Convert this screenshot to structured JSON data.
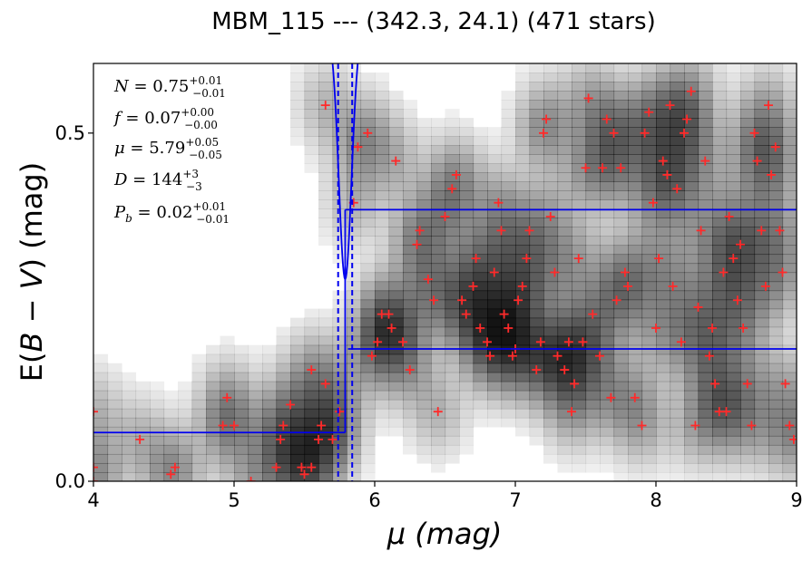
{
  "chart_data": {
    "type": "scatter",
    "title": "MBM_115 --- (342.3, 24.1) (471 stars)",
    "xlabel": "μ (mag)",
    "ylabel_parts": [
      "E(",
      "B",
      " − ",
      "V",
      ") (mag)"
    ],
    "xlim": [
      4,
      9
    ],
    "ylim": [
      0.0,
      0.6
    ],
    "x_ticks": [
      4,
      5,
      6,
      7,
      8,
      9
    ],
    "x_tick_labels": [
      "4",
      "5",
      "6",
      "7",
      "8",
      "9"
    ],
    "y_ticks": [
      0.0,
      0.5
    ],
    "y_tick_labels": [
      "0.0",
      "0.5"
    ],
    "grid": false,
    "annotations": [
      {
        "symbol": "N",
        "value": "0.75",
        "sup": "+0.01",
        "sub": "−0.01"
      },
      {
        "symbol": "f",
        "value": "0.07",
        "sup": "+0.00",
        "sub": "−0.00"
      },
      {
        "symbol": "μ",
        "value": "5.79",
        "sup": "+0.05",
        "sub": "−0.05"
      },
      {
        "symbol": "D",
        "value": "144",
        "sup": "+3",
        "sub": "−3"
      },
      {
        "symbol": "P",
        "symbol_sub": "b",
        "value": "0.02",
        "sup": "+0.01",
        "sub": "−0.01"
      }
    ],
    "colors": {
      "stars": "#ff2a2a",
      "model": "#0000ee",
      "density": "#000000"
    },
    "step_model": {
      "mu": 5.79,
      "foreground_ebv": 0.07,
      "background_band_low": 0.19,
      "background_band_high": 0.39
    },
    "mu_bounds": [
      5.74,
      5.84
    ],
    "stars": [
      [
        4.0,
        0.0
      ],
      [
        4.0,
        0.02
      ],
      [
        4.0,
        0.1
      ],
      [
        4.55,
        0.01
      ],
      [
        4.58,
        0.02
      ],
      [
        4.33,
        0.06
      ],
      [
        4.92,
        0.08
      ],
      [
        4.95,
        0.12
      ],
      [
        5.0,
        0.08
      ],
      [
        5.12,
        0.0
      ],
      [
        5.3,
        0.02
      ],
      [
        5.33,
        0.06
      ],
      [
        5.35,
        0.08
      ],
      [
        5.4,
        0.11
      ],
      [
        5.48,
        0.02
      ],
      [
        5.5,
        0.01
      ],
      [
        5.55,
        0.02
      ],
      [
        5.6,
        0.06
      ],
      [
        5.62,
        0.08
      ],
      [
        5.65,
        0.14
      ],
      [
        5.55,
        0.16
      ],
      [
        5.7,
        0.06
      ],
      [
        5.75,
        0.1
      ],
      [
        5.65,
        0.54
      ],
      [
        5.85,
        0.4
      ],
      [
        5.88,
        0.48
      ],
      [
        5.95,
        0.5
      ],
      [
        5.98,
        0.18
      ],
      [
        6.02,
        0.2
      ],
      [
        6.05,
        0.24
      ],
      [
        6.1,
        0.24
      ],
      [
        6.12,
        0.22
      ],
      [
        6.15,
        0.46
      ],
      [
        6.2,
        0.2
      ],
      [
        6.25,
        0.16
      ],
      [
        6.3,
        0.34
      ],
      [
        6.32,
        0.36
      ],
      [
        6.38,
        0.29
      ],
      [
        6.42,
        0.26
      ],
      [
        6.45,
        0.1
      ],
      [
        6.5,
        0.38
      ],
      [
        6.55,
        0.42
      ],
      [
        6.58,
        0.44
      ],
      [
        6.62,
        0.26
      ],
      [
        6.65,
        0.24
      ],
      [
        6.7,
        0.28
      ],
      [
        6.72,
        0.32
      ],
      [
        6.75,
        0.22
      ],
      [
        6.8,
        0.2
      ],
      [
        6.82,
        0.18
      ],
      [
        6.85,
        0.3
      ],
      [
        6.88,
        0.4
      ],
      [
        6.9,
        0.36
      ],
      [
        6.92,
        0.24
      ],
      [
        6.95,
        0.22
      ],
      [
        6.98,
        0.18
      ],
      [
        7.0,
        0.19
      ],
      [
        7.02,
        0.26
      ],
      [
        7.05,
        0.28
      ],
      [
        7.08,
        0.32
      ],
      [
        7.1,
        0.36
      ],
      [
        7.15,
        0.16
      ],
      [
        7.18,
        0.2
      ],
      [
        7.2,
        0.5
      ],
      [
        7.22,
        0.52
      ],
      [
        7.25,
        0.38
      ],
      [
        7.28,
        0.3
      ],
      [
        7.3,
        0.18
      ],
      [
        7.35,
        0.16
      ],
      [
        7.38,
        0.2
      ],
      [
        7.4,
        0.1
      ],
      [
        7.42,
        0.14
      ],
      [
        7.45,
        0.32
      ],
      [
        7.48,
        0.2
      ],
      [
        7.5,
        0.45
      ],
      [
        7.52,
        0.55
      ],
      [
        7.55,
        0.24
      ],
      [
        7.6,
        0.18
      ],
      [
        7.62,
        0.45
      ],
      [
        7.65,
        0.52
      ],
      [
        7.68,
        0.12
      ],
      [
        7.7,
        0.5
      ],
      [
        7.72,
        0.26
      ],
      [
        7.75,
        0.45
      ],
      [
        7.78,
        0.3
      ],
      [
        7.8,
        0.28
      ],
      [
        7.85,
        0.12
      ],
      [
        7.9,
        0.08
      ],
      [
        7.92,
        0.5
      ],
      [
        7.95,
        0.53
      ],
      [
        7.98,
        0.4
      ],
      [
        8.0,
        0.22
      ],
      [
        8.02,
        0.32
      ],
      [
        8.05,
        0.46
      ],
      [
        8.08,
        0.44
      ],
      [
        8.1,
        0.54
      ],
      [
        8.12,
        0.28
      ],
      [
        8.15,
        0.42
      ],
      [
        8.18,
        0.2
      ],
      [
        8.2,
        0.5
      ],
      [
        8.22,
        0.52
      ],
      [
        8.25,
        0.56
      ],
      [
        8.28,
        0.08
      ],
      [
        8.3,
        0.25
      ],
      [
        8.32,
        0.36
      ],
      [
        8.35,
        0.46
      ],
      [
        8.38,
        0.18
      ],
      [
        8.4,
        0.22
      ],
      [
        8.42,
        0.14
      ],
      [
        8.45,
        0.1
      ],
      [
        8.48,
        0.3
      ],
      [
        8.5,
        0.1
      ],
      [
        8.52,
        0.38
      ],
      [
        8.55,
        0.32
      ],
      [
        8.58,
        0.26
      ],
      [
        8.6,
        0.34
      ],
      [
        8.62,
        0.22
      ],
      [
        8.65,
        0.14
      ],
      [
        8.68,
        0.08
      ],
      [
        8.7,
        0.5
      ],
      [
        8.72,
        0.46
      ],
      [
        8.75,
        0.36
      ],
      [
        8.78,
        0.28
      ],
      [
        8.8,
        0.54
      ],
      [
        8.82,
        0.44
      ],
      [
        8.85,
        0.48
      ],
      [
        8.88,
        0.36
      ],
      [
        8.9,
        0.3
      ],
      [
        8.92,
        0.14
      ],
      [
        8.95,
        0.08
      ],
      [
        8.98,
        0.06
      ]
    ]
  }
}
